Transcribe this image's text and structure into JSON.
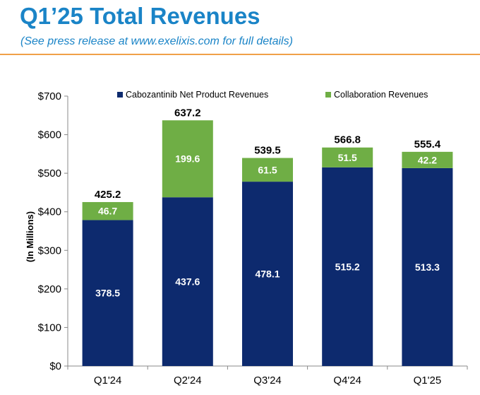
{
  "header": {
    "title": "Q1’25 Total Revenues",
    "subtitle": "(See press release at www.exelixis.com for full details)"
  },
  "colors": {
    "title": "#1a84c7",
    "rule": "#f0a049",
    "cabozantinib": "#0d2a6e",
    "collaboration": "#6fae45"
  },
  "chart_data": {
    "type": "bar",
    "stacked": true,
    "categories": [
      "Q1'24",
      "Q2'24",
      "Q3'24",
      "Q4'24",
      "Q1'25"
    ],
    "series": [
      {
        "name": "Cabozantinib Net Product Revenues",
        "values": [
          378.5,
          437.6,
          478.1,
          515.2,
          513.3
        ]
      },
      {
        "name": "Collaboration Revenues",
        "values": [
          46.7,
          199.6,
          61.5,
          51.5,
          42.2
        ]
      }
    ],
    "totals": [
      425.2,
      637.2,
      539.5,
      566.8,
      555.4
    ],
    "ylabel": "(In Millions)",
    "xlabel": "",
    "ylim": [
      0,
      700
    ],
    "yticks": [
      0,
      100,
      200,
      300,
      400,
      500,
      600,
      700
    ],
    "ytick_labels": [
      "$0",
      "$100",
      "$200",
      "$300",
      "$400",
      "$500",
      "$600",
      "$700"
    ],
    "legend_position": "top",
    "grid": false
  }
}
